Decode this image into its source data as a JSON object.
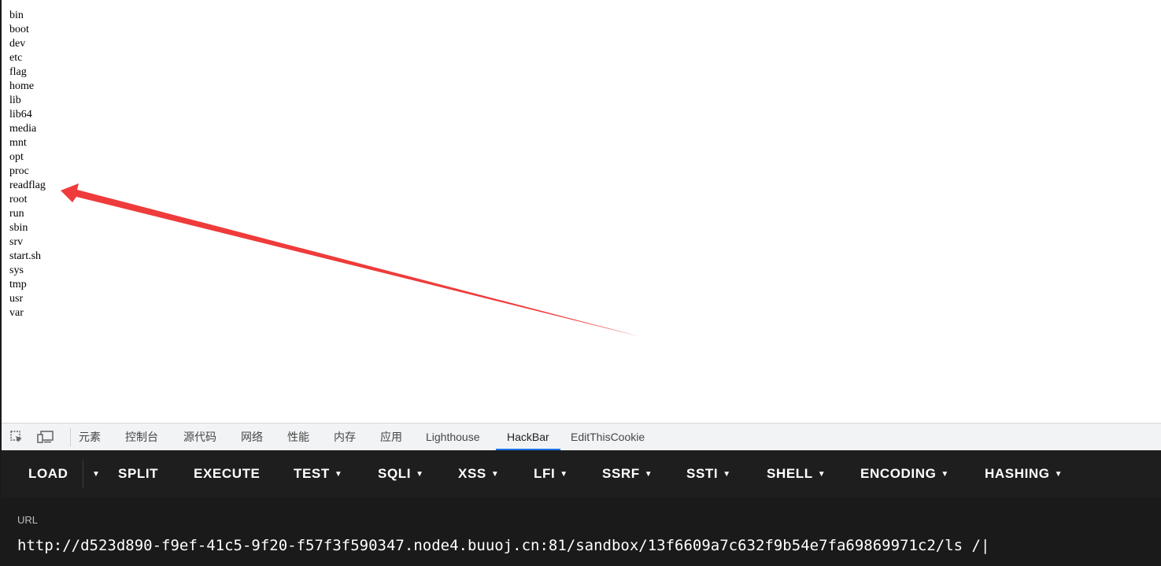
{
  "listing": [
    "bin",
    "boot",
    "dev",
    "etc",
    "flag",
    "home",
    "lib",
    "lib64",
    "media",
    "mnt",
    "opt",
    "proc",
    "readflag",
    "root",
    "run",
    "sbin",
    "srv",
    "start.sh",
    "sys",
    "tmp",
    "usr",
    "var"
  ],
  "arrow": {
    "color": "#ef3b3b",
    "target": "readflag"
  },
  "devtools": {
    "tabs": [
      "元素",
      "控制台",
      "源代码",
      "网络",
      "性能",
      "内存",
      "应用",
      "Lighthouse",
      "HackBar",
      "EditThisCookie"
    ],
    "active_tab": "HackBar",
    "accent": "#1a73e8",
    "icons": [
      "inspect-element-icon",
      "device-toolbar-icon"
    ]
  },
  "hackbar": {
    "buttons": [
      "LOAD",
      "SPLIT",
      "EXECUTE",
      "TEST",
      "SQLI",
      "XSS",
      "LFI",
      "SSRF",
      "SSTI",
      "SHELL",
      "ENCODING",
      "HASHING"
    ],
    "url_label": "URL",
    "url_value": "http://d523d890-f9ef-41c5-9f20-f57f3f590347.node4.buuoj.cn:81/sandbox/13f6609a7c632f9b54e7fa69869971c2/ls /|"
  }
}
